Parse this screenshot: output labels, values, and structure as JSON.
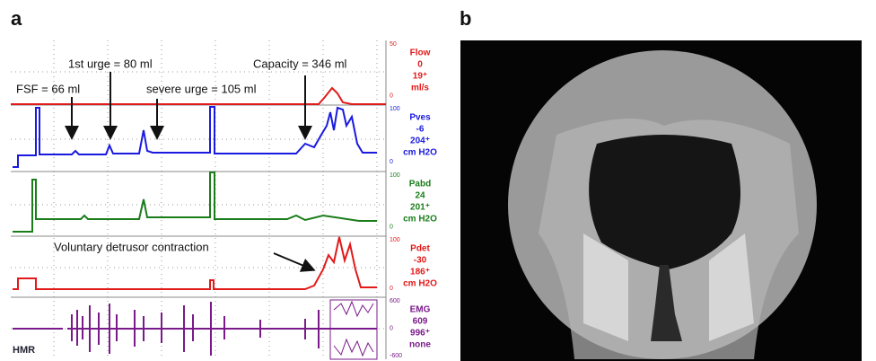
{
  "panels": {
    "a": {
      "label": "a",
      "annotations": [
        "FSF = 66 ml",
        "1st urge = 80 ml",
        "severe urge = 105 ml",
        "Capacity = 346 ml",
        "Voluntary detrusor contraction"
      ],
      "channels": [
        {
          "name": "Flow",
          "readings": [
            "0",
            "19⁺",
            "ml/s"
          ],
          "scale": [
            "50",
            "0"
          ]
        },
        {
          "name": "Pves",
          "readings": [
            "-6",
            "204⁺",
            "cm H2O"
          ],
          "scale": [
            "100",
            "0"
          ]
        },
        {
          "name": "Pabd",
          "readings": [
            "24",
            "201⁺",
            "cm H2O"
          ],
          "scale": [
            "100",
            "0"
          ]
        },
        {
          "name": "Pdet",
          "readings": [
            "-30",
            "186⁺",
            "cm H2O"
          ],
          "scale": [
            "100",
            "0"
          ]
        },
        {
          "name": "EMG",
          "readings": [
            "609",
            "996⁺",
            "none"
          ],
          "scale": [
            "600",
            "0",
            "-600"
          ]
        }
      ],
      "footer": "HMR"
    },
    "b": {
      "label": "b"
    }
  }
}
